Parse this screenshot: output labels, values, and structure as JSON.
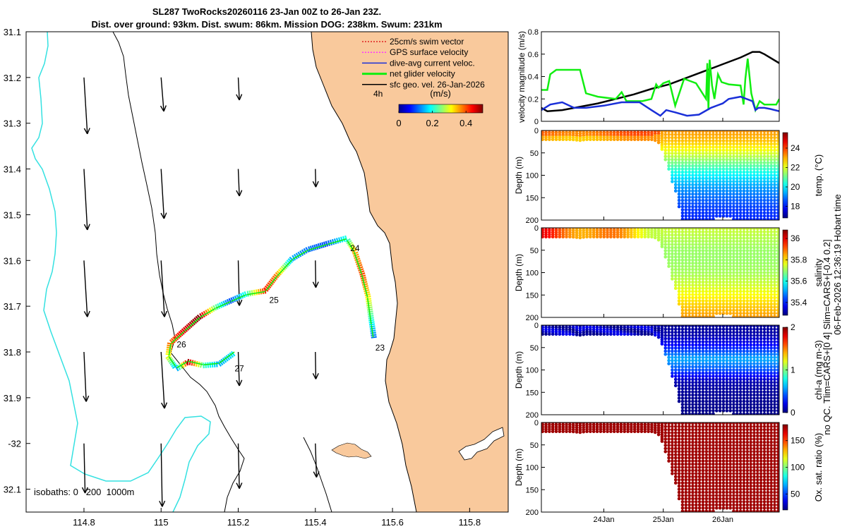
{
  "title": {
    "line1": "SL287 TwoRocks20260116 23-Jan 00Z to 26-Jan 23Z.",
    "line2": "Dist. over ground: 93km. Dist. swum: 86km. Mission DOG: 238km. Swum: 231km"
  },
  "side_caption": {
    "right": "06-Feb-2026 12:36:19 Hobart time",
    "left": "no QC. Tlim=CARS+[0 4] Slim=CARS+[-0.4 0.2]"
  },
  "colors": {
    "land": "#f9c99c",
    "shelf": "#34e1e1",
    "coast": "#000000",
    "speed_black": "#000000",
    "speed_green": "#11ee11",
    "speed_blue": "#1a2fd8"
  },
  "chart_data": [
    {
      "type": "map",
      "title": "Glider track",
      "lon_range": [
        114.65,
        115.9
      ],
      "lat_range": [
        -32.15,
        -31.1
      ],
      "x_ticks": [
        114.8,
        115,
        115.2,
        115.4,
        115.6,
        115.8
      ],
      "x_tick_labels": [
        "114.8",
        "115",
        "115.2",
        "115.4",
        "115.6",
        "115.8"
      ],
      "y_ticks": [
        -31.1,
        -31.2,
        -31.3,
        -31.4,
        -31.5,
        -31.6,
        -31.7,
        -31.8,
        -31.9,
        -32,
        -32.1
      ],
      "y_tick_labels": [
        "31.1",
        "31.2",
        "31.3",
        "31.4",
        "31.5",
        "31.6",
        "31.7",
        "31.8",
        "31.9",
        "-32",
        "32.1"
      ],
      "legend": [
        {
          "label": "25cm/s swim vector",
          "color": "#e02020",
          "style": "dotted"
        },
        {
          "label": "GPS surface velocity",
          "color": "#ff33ff",
          "style": "dotted"
        },
        {
          "label": "dive-avg current veloc.",
          "color": "#1a2fd8",
          "style": "solid"
        },
        {
          "label": "net glider velocity",
          "color": "#11ee11",
          "style": "bold"
        },
        {
          "label": "sfc geo. vel. 26-Jan-2026",
          "color": "#000000",
          "style": "solid"
        }
      ],
      "legend_extra": "4h",
      "colorbar": {
        "label": "(m/s)",
        "ticks": [
          0,
          0.2,
          0.4
        ],
        "tick_labels": [
          "0",
          "0.2",
          "0.4"
        ],
        "range": [
          0,
          0.5
        ]
      },
      "isobaths_label": "isobaths: 0   200  1000m",
      "track": [
        {
          "lon": 115.55,
          "lat": -31.768,
          "speed": 0.12
        },
        {
          "lon": 115.545,
          "lat": -31.74,
          "speed": 0.18
        },
        {
          "lon": 115.535,
          "lat": -31.68,
          "speed": 0.32
        },
        {
          "lon": 115.52,
          "lat": -31.63,
          "speed": 0.4
        },
        {
          "lon": 115.5,
          "lat": -31.58,
          "speed": 0.35
        },
        {
          "lon": 115.48,
          "lat": -31.553,
          "speed": 0.2
        },
        {
          "lon": 115.43,
          "lat": -31.565,
          "speed": 0.1
        },
        {
          "lon": 115.38,
          "lat": -31.578,
          "speed": 0.12
        },
        {
          "lon": 115.34,
          "lat": -31.598,
          "speed": 0.15
        },
        {
          "lon": 115.3,
          "lat": -31.635,
          "speed": 0.38
        },
        {
          "lon": 115.27,
          "lat": -31.668,
          "speed": 0.42
        },
        {
          "lon": 115.22,
          "lat": -31.675,
          "speed": 0.2
        },
        {
          "lon": 115.18,
          "lat": -31.69,
          "speed": 0.1
        },
        {
          "lon": 115.14,
          "lat": -31.705,
          "speed": 0.25
        },
        {
          "lon": 115.1,
          "lat": -31.725,
          "speed": 0.5
        },
        {
          "lon": 115.06,
          "lat": -31.755,
          "speed": 0.45
        },
        {
          "lon": 115.025,
          "lat": -31.782,
          "speed": 0.38
        },
        {
          "lon": 115.02,
          "lat": -31.81,
          "speed": 0.3
        },
        {
          "lon": 115.04,
          "lat": -31.835,
          "speed": 0.15
        },
        {
          "lon": 115.07,
          "lat": -31.82,
          "speed": 0.48
        },
        {
          "lon": 115.11,
          "lat": -31.828,
          "speed": 0.22
        },
        {
          "lon": 115.15,
          "lat": -31.825,
          "speed": 0.15
        },
        {
          "lon": 115.19,
          "lat": -31.8,
          "speed": 0.18
        }
      ],
      "day_labels": [
        {
          "label": "23",
          "lon": 115.55,
          "lat": -31.772
        },
        {
          "label": "24",
          "lon": 115.485,
          "lat": -31.555
        },
        {
          "label": "25",
          "lon": 115.275,
          "lat": -31.668
        },
        {
          "label": "26",
          "lon": 115.035,
          "lat": -31.765
        },
        {
          "label": "27",
          "lon": 115.185,
          "lat": -31.818
        }
      ],
      "current_vectors": [
        {
          "lon": 114.8,
          "lat": -31.2,
          "u": 0.015,
          "v": -0.25
        },
        {
          "lon": 115.0,
          "lat": -31.2,
          "u": 0.012,
          "v": -0.15
        },
        {
          "lon": 115.2,
          "lat": -31.2,
          "u": 0.005,
          "v": -0.1
        },
        {
          "lon": 114.8,
          "lat": -31.4,
          "u": 0.015,
          "v": -0.27
        },
        {
          "lon": 115.0,
          "lat": -31.4,
          "u": 0.013,
          "v": -0.22
        },
        {
          "lon": 115.2,
          "lat": -31.4,
          "u": 0.005,
          "v": -0.12
        },
        {
          "lon": 115.4,
          "lat": -31.4,
          "u": 0.002,
          "v": -0.08
        },
        {
          "lon": 114.8,
          "lat": -31.6,
          "u": 0.015,
          "v": -0.25
        },
        {
          "lon": 115.0,
          "lat": -31.6,
          "u": 0.015,
          "v": -0.25
        },
        {
          "lon": 115.2,
          "lat": -31.6,
          "u": 0.005,
          "v": -0.2
        },
        {
          "lon": 115.4,
          "lat": -31.6,
          "u": 0.002,
          "v": -0.12
        },
        {
          "lon": 114.8,
          "lat": -31.8,
          "u": 0.01,
          "v": -0.22
        },
        {
          "lon": 115.0,
          "lat": -31.8,
          "u": 0.015,
          "v": -0.25
        },
        {
          "lon": 115.2,
          "lat": -31.8,
          "u": 0.005,
          "v": -0.15
        },
        {
          "lon": 115.4,
          "lat": -31.8,
          "u": 0.002,
          "v": -0.12
        },
        {
          "lon": 114.8,
          "lat": -32.0,
          "u": 0.005,
          "v": -0.22
        },
        {
          "lon": 115.0,
          "lat": -32.0,
          "u": 0.005,
          "v": -0.28
        },
        {
          "lon": 115.2,
          "lat": -32.0,
          "u": 0.005,
          "v": -0.2
        },
        {
          "lon": 115.4,
          "lat": -32.0,
          "u": 0.005,
          "v": -0.15
        }
      ]
    },
    {
      "type": "line",
      "ylabel": "velocity magnitude (m/s)",
      "xlim": [
        22.95,
        26.95
      ],
      "ylim": [
        0,
        0.8
      ],
      "y_ticks": [
        0,
        0.2,
        0.4,
        0.6,
        0.8
      ],
      "y_tick_labels": [
        "0",
        "0.2",
        "0.4",
        "0.6",
        "0.8"
      ],
      "series": [
        {
          "name": "sfc geo. vel.",
          "color": "#000000",
          "x": [
            22.95,
            23.05,
            23.3,
            23.6,
            23.9,
            24.2,
            24.5,
            24.8,
            25.1,
            25.4,
            25.7,
            26.0,
            26.3,
            26.5,
            26.62,
            26.7,
            26.95
          ],
          "y": [
            0.12,
            0.09,
            0.1,
            0.13,
            0.16,
            0.2,
            0.24,
            0.29,
            0.33,
            0.39,
            0.45,
            0.51,
            0.57,
            0.62,
            0.62,
            0.6,
            0.52
          ]
        },
        {
          "name": "net glider velocity",
          "color": "#11ee11",
          "x": [
            22.95,
            23.05,
            23.1,
            23.2,
            23.35,
            23.6,
            23.7,
            23.9,
            24.2,
            24.3,
            24.38,
            24.45,
            24.65,
            24.8,
            24.88,
            24.92,
            25.0,
            25.1,
            25.2,
            25.35,
            25.55,
            25.72,
            25.74,
            25.76,
            25.78,
            25.82,
            25.86,
            25.92,
            25.98,
            26.1,
            26.3,
            26.35,
            26.38,
            26.42,
            26.48,
            26.55,
            26.62,
            26.7,
            26.9,
            26.95
          ],
          "y": [
            0.28,
            0.28,
            0.42,
            0.46,
            0.46,
            0.46,
            0.25,
            0.22,
            0.2,
            0.26,
            0.18,
            0.18,
            0.18,
            0.2,
            0.33,
            0.3,
            0.34,
            0.36,
            0.14,
            0.38,
            0.34,
            0.2,
            0.52,
            0.1,
            0.55,
            0.32,
            0.2,
            0.42,
            0.35,
            0.33,
            0.32,
            0.15,
            0.38,
            0.56,
            0.25,
            0.1,
            0.18,
            0.15,
            0.15,
            0.2
          ]
        },
        {
          "name": "dive-avg current veloc.",
          "color": "#1a2fd8",
          "x": [
            22.95,
            23.1,
            23.3,
            23.5,
            23.7,
            24.0,
            24.3,
            24.6,
            24.8,
            24.95,
            25.05,
            25.2,
            25.4,
            25.6,
            25.8,
            26.0,
            26.1,
            26.3,
            26.5,
            26.55,
            26.6,
            26.7,
            26.8,
            26.95
          ],
          "y": [
            0.1,
            0.15,
            0.17,
            0.12,
            0.12,
            0.14,
            0.17,
            0.17,
            0.1,
            0.05,
            0.1,
            0.08,
            0.05,
            0.06,
            0.12,
            0.16,
            0.2,
            0.22,
            0.18,
            0.1,
            0.12,
            0.12,
            0.11,
            0.09
          ]
        }
      ]
    },
    {
      "type": "section",
      "variable": "temperature",
      "ylabel": "Depth (m)",
      "colorbar_label": "temp. (°C)",
      "clim": [
        16.8,
        25.6
      ],
      "colormap": "jet",
      "colorbar_ticks": [
        18,
        20,
        22,
        24
      ],
      "colorbar_tick_labels": [
        "18",
        "20",
        "22",
        "24"
      ],
      "y_ticks": [
        0,
        50,
        100,
        150,
        200
      ],
      "y_tick_labels": [
        "0",
        "50",
        "100",
        "150",
        "200"
      ],
      "profile": {
        "depth": [
          0,
          25,
          50,
          75,
          100,
          125,
          150,
          175,
          200
        ],
        "value": [
          23.2,
          22.8,
          22.0,
          21.0,
          20.0,
          19.3,
          18.8,
          18.4,
          18.2
        ]
      }
    },
    {
      "type": "section",
      "variable": "salinity",
      "ylabel": "Depth (m)",
      "colorbar_label": "salinity",
      "clim": [
        35.28,
        36.08
      ],
      "colormap": "jet",
      "colorbar_ticks": [
        35.4,
        35.6,
        35.8,
        36
      ],
      "colorbar_tick_labels": [
        "35.4",
        "35.6",
        "35.8",
        "36"
      ],
      "y_ticks": [
        0,
        50,
        100,
        150,
        200
      ],
      "y_tick_labels": [
        "0",
        "50",
        "100",
        "150",
        "200"
      ],
      "profile": {
        "depth": [
          0,
          25,
          50,
          75,
          100,
          125,
          150,
          175,
          200
        ],
        "value": [
          35.74,
          35.72,
          35.7,
          35.7,
          35.71,
          35.74,
          35.78,
          35.82,
          35.86
        ]
      }
    },
    {
      "type": "section",
      "variable": "chlorophyll-a",
      "ylabel": "Depth (m)",
      "colorbar_label": "chl-a (mg m-3)",
      "clim": [
        0,
        2
      ],
      "colormap": "jet",
      "colorbar_ticks": [
        0,
        1,
        2
      ],
      "colorbar_tick_labels": [
        "0",
        "1",
        "2"
      ],
      "y_ticks": [
        0,
        50,
        100,
        150,
        200
      ],
      "y_tick_labels": [
        "0",
        "50",
        "100",
        "150",
        "200"
      ],
      "profile": {
        "depth": [
          0,
          25,
          50,
          75,
          100,
          125,
          150,
          175,
          200
        ],
        "value": [
          0.05,
          0.1,
          0.3,
          0.6,
          0.4,
          0.1,
          0.05,
          0.03,
          0.02
        ]
      }
    },
    {
      "type": "section",
      "variable": "oxygen saturation",
      "ylabel": "Depth (m)",
      "colorbar_label": "Ox. sat. ratio (%)",
      "clim": [
        20,
        180
      ],
      "colormap": "jet",
      "colorbar_ticks": [
        50,
        100,
        150
      ],
      "colorbar_tick_labels": [
        "50",
        "100",
        "150"
      ],
      "y_ticks": [
        0,
        50,
        100,
        150,
        200
      ],
      "y_tick_labels": [
        "0",
        "50",
        "100",
        "150",
        "200"
      ],
      "profile": {
        "depth": [
          0,
          25,
          50,
          75,
          100,
          125,
          150,
          175,
          200
        ],
        "value": [
          175,
          175,
          175,
          175,
          175,
          175,
          175,
          175,
          175
        ]
      }
    }
  ],
  "time_axis": {
    "xlim": [
      22.95,
      26.95
    ],
    "ticks": [
      24,
      25,
      26
    ],
    "tick_labels": [
      "24Jan",
      "25Jan",
      "26Jan"
    ]
  },
  "section_bottom": {
    "day": [
      22.95,
      24.85,
      24.95,
      25.05,
      25.15,
      25.25,
      25.3,
      25.6,
      25.8,
      25.95,
      26.1,
      26.2,
      26.3,
      26.5,
      26.95
    ],
    "depth": [
      22,
      22,
      30,
      75,
      115,
      160,
      200,
      200,
      200,
      195,
      195,
      200,
      200,
      200,
      200
    ]
  },
  "section_top": {
    "day": [
      22.95,
      23.3,
      23.6,
      23.8,
      24.0,
      24.4,
      24.8,
      24.85
    ],
    "depth": [
      20,
      18,
      22,
      18,
      20,
      18,
      20,
      22
    ]
  }
}
